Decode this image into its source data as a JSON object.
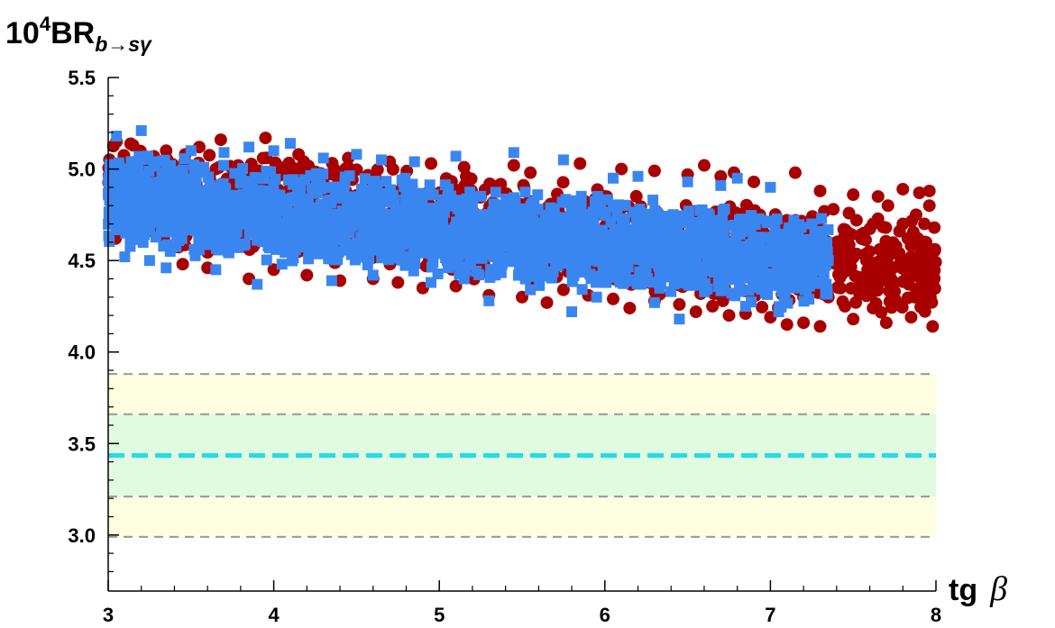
{
  "chart_data": {
    "type": "scatter",
    "title": "",
    "ylabel_parts": {
      "prefix": "10",
      "power": "4",
      "main": "BR",
      "subscript": "b→sγ"
    },
    "xlabel_parts": {
      "main": "tg",
      "symbol": "β"
    },
    "xlim": [
      3,
      8
    ],
    "ylim": [
      2.7,
      5.5
    ],
    "x_ticks": [
      "3",
      "4",
      "5",
      "6",
      "7",
      "8"
    ],
    "y_ticks": [
      "3.0",
      "3.5",
      "4.0",
      "4.5",
      "5.0",
      "5.5"
    ],
    "grid": false,
    "bands": [
      {
        "y0": 2.99,
        "y1": 3.88,
        "color": "#fdfde0"
      },
      {
        "y0": 3.21,
        "y1": 3.66,
        "color": "#e0fbe0"
      }
    ],
    "reference_lines": [
      {
        "y": 3.88,
        "color": "#999999",
        "style": "dashed"
      },
      {
        "y": 3.66,
        "color": "#999999",
        "style": "dashed"
      },
      {
        "y": 3.435,
        "color": "#22dde8",
        "style": "dashed-thick"
      },
      {
        "y": 3.21,
        "color": "#999999",
        "style": "dashed"
      },
      {
        "y": 2.99,
        "color": "#999999",
        "style": "dashed"
      }
    ],
    "series": [
      {
        "marker": "circle",
        "color": "#a80000",
        "x_range": [
          3.0,
          8.0
        ],
        "density": "scatter cloud spanning the full x range; blue points cover it for tg β below ~7.3",
        "points": [
          [
            3.05,
            5.15
          ],
          [
            3.15,
            5.13
          ],
          [
            3.35,
            5.1
          ],
          [
            3.55,
            5.12
          ],
          [
            3.68,
            5.16
          ],
          [
            3.95,
            5.17
          ],
          [
            4.15,
            5.08
          ],
          [
            4.45,
            5.06
          ],
          [
            4.7,
            5.04
          ],
          [
            4.95,
            5.03
          ],
          [
            5.15,
            5.01
          ],
          [
            5.45,
            5.02
          ],
          [
            5.55,
            4.98
          ],
          [
            5.85,
            5.03
          ],
          [
            6.1,
            5.0
          ],
          [
            6.3,
            4.99
          ],
          [
            6.5,
            4.97
          ],
          [
            6.6,
            5.02
          ],
          [
            6.7,
            4.96
          ],
          [
            6.78,
            4.98
          ],
          [
            6.9,
            4.93
          ],
          [
            7.15,
            4.98
          ],
          [
            7.3,
            4.88
          ],
          [
            7.5,
            4.86
          ],
          [
            7.65,
            4.85
          ],
          [
            7.8,
            4.89
          ],
          [
            7.9,
            4.87
          ],
          [
            7.96,
            4.88
          ],
          [
            3.45,
            4.48
          ],
          [
            3.6,
            4.46
          ],
          [
            3.85,
            4.4
          ],
          [
            4.0,
            4.45
          ],
          [
            4.2,
            4.42
          ],
          [
            4.4,
            4.39
          ],
          [
            4.6,
            4.4
          ],
          [
            4.75,
            4.38
          ],
          [
            4.9,
            4.35
          ],
          [
            5.1,
            4.36
          ],
          [
            5.3,
            4.31
          ],
          [
            5.5,
            4.3
          ],
          [
            5.65,
            4.27
          ],
          [
            5.75,
            4.34
          ],
          [
            5.9,
            4.31
          ],
          [
            6.05,
            4.29
          ],
          [
            6.15,
            4.24
          ],
          [
            6.3,
            4.28
          ],
          [
            6.45,
            4.26
          ],
          [
            6.55,
            4.22
          ],
          [
            6.65,
            4.25
          ],
          [
            6.75,
            4.2
          ],
          [
            6.85,
            4.21
          ],
          [
            7.0,
            4.19
          ],
          [
            7.1,
            4.15
          ],
          [
            7.2,
            4.16
          ],
          [
            7.3,
            4.14
          ],
          [
            7.5,
            4.18
          ],
          [
            7.7,
            4.16
          ],
          [
            7.85,
            4.19
          ],
          [
            7.98,
            4.14
          ],
          [
            7.35,
            4.3
          ],
          [
            7.42,
            4.42
          ],
          [
            7.48,
            4.55
          ],
          [
            7.55,
            4.62
          ],
          [
            7.6,
            4.38
          ],
          [
            7.62,
            4.7
          ],
          [
            7.68,
            4.48
          ],
          [
            7.72,
            4.58
          ],
          [
            7.75,
            4.33
          ],
          [
            7.78,
            4.66
          ],
          [
            7.82,
            4.44
          ],
          [
            7.85,
            4.52
          ],
          [
            7.88,
            4.75
          ],
          [
            7.92,
            4.36
          ],
          [
            7.94,
            4.6
          ],
          [
            7.97,
            4.47
          ],
          [
            7.99,
            4.68
          ],
          [
            7.38,
            4.78
          ],
          [
            7.45,
            4.25
          ],
          [
            7.52,
            4.72
          ],
          [
            7.58,
            4.5
          ],
          [
            7.65,
            4.4
          ],
          [
            7.71,
            4.8
          ],
          [
            7.76,
            4.28
          ],
          [
            7.83,
            4.62
          ],
          [
            7.87,
            4.3
          ],
          [
            7.91,
            4.55
          ],
          [
            7.96,
            4.8
          ],
          [
            7.4,
            4.6
          ],
          [
            7.55,
            4.35
          ],
          [
            7.66,
            4.56
          ],
          [
            7.8,
            4.7
          ],
          [
            7.9,
            4.42
          ],
          [
            7.33,
            4.52
          ],
          [
            7.46,
            4.66
          ],
          [
            7.62,
            4.24
          ],
          [
            7.74,
            4.46
          ],
          [
            5.2,
            4.7
          ],
          [
            5.35,
            4.62
          ],
          [
            5.6,
            4.75
          ],
          [
            5.8,
            4.58
          ],
          [
            6.0,
            4.8
          ],
          [
            6.2,
            4.52
          ],
          [
            6.4,
            4.7
          ],
          [
            6.6,
            4.55
          ],
          [
            6.8,
            4.62
          ],
          [
            7.0,
            4.45
          ],
          [
            7.1,
            4.72
          ],
          [
            4.8,
            4.85
          ],
          [
            4.3,
            4.92
          ],
          [
            6.9,
            4.38
          ],
          [
            7.2,
            4.3
          ],
          [
            6.7,
            4.4
          ]
        ]
      },
      {
        "marker": "square",
        "color": "#3a86f0",
        "x_range": [
          3.0,
          7.35
        ],
        "density": "dense scatter cloud drawn above the red circles",
        "points": [
          [
            3.05,
            5.18
          ],
          [
            3.2,
            5.21
          ],
          [
            3.1,
            4.52
          ],
          [
            3.25,
            4.5
          ],
          [
            3.35,
            4.46
          ],
          [
            3.5,
            5.1
          ],
          [
            3.7,
            5.09
          ],
          [
            3.65,
            4.45
          ],
          [
            3.9,
            4.37
          ],
          [
            3.85,
            5.12
          ],
          [
            4.0,
            5.1
          ],
          [
            4.1,
            5.14
          ],
          [
            4.05,
            4.48
          ],
          [
            4.3,
            5.06
          ],
          [
            4.5,
            5.08
          ],
          [
            4.35,
            4.39
          ],
          [
            4.6,
            4.42
          ],
          [
            4.65,
            5.05
          ],
          [
            4.85,
            5.04
          ],
          [
            5.1,
            5.07
          ],
          [
            4.95,
            4.38
          ],
          [
            5.15,
            4.4
          ],
          [
            5.3,
            4.28
          ],
          [
            5.45,
            5.09
          ],
          [
            5.55,
            4.34
          ],
          [
            5.8,
            4.22
          ],
          [
            5.75,
            5.05
          ],
          [
            5.95,
            4.3
          ],
          [
            6.05,
            4.95
          ],
          [
            6.2,
            4.96
          ],
          [
            6.3,
            4.27
          ],
          [
            6.45,
            4.18
          ],
          [
            6.5,
            4.93
          ],
          [
            6.7,
            4.91
          ],
          [
            6.8,
            4.95
          ],
          [
            6.85,
            4.25
          ],
          [
            7.0,
            4.9
          ],
          [
            7.05,
            4.22
          ],
          [
            7.2,
            4.58
          ],
          [
            7.35,
            4.5
          ],
          [
            7.25,
            4.7
          ],
          [
            7.15,
            4.35
          ]
        ]
      }
    ]
  }
}
